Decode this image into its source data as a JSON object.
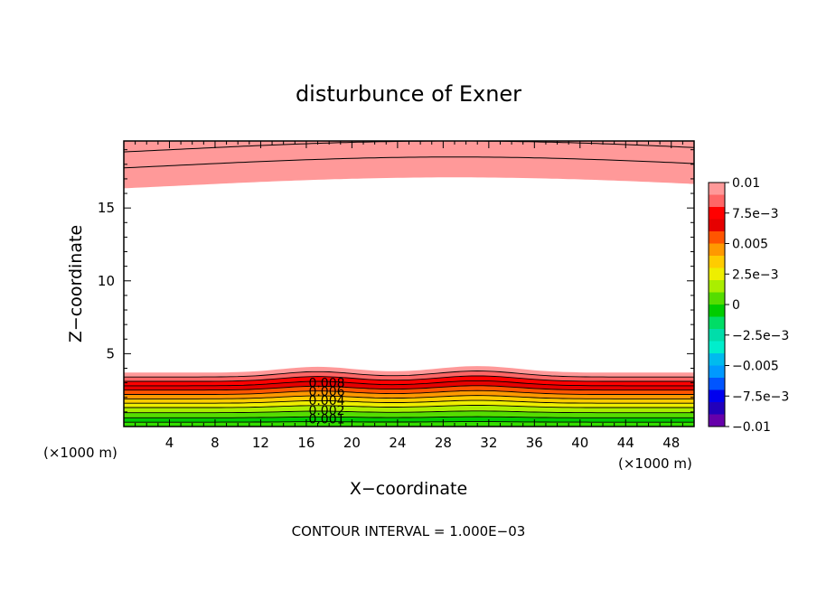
{
  "chart_data": {
    "type": "contour",
    "title": "disturbunce of Exner",
    "xlabel": "X−coordinate",
    "ylabel": "Z−coordinate",
    "x_unit_left": "(×1000 m)",
    "x_unit_right": "(×1000 m)",
    "footer": "CONTOUR INTERVAL = 1.000E−03",
    "xlim": [
      0,
      50
    ],
    "ylim": [
      0,
      19.6
    ],
    "x_ticks": [
      "4",
      "8",
      "12",
      "16",
      "20",
      "24",
      "28",
      "32",
      "36",
      "40",
      "44",
      "48"
    ],
    "y_ticks": [
      "5",
      "10",
      "15"
    ],
    "contour_labels": [
      "0.008",
      "0.006",
      "0.004",
      "0.002",
      "0.001"
    ],
    "colorbar": {
      "labels": [
        "0.01",
        "7.5e−3",
        "0.005",
        "2.5e−3",
        "0",
        "−2.5e−3",
        "−0.005",
        "−7.5e−3",
        "−0.01"
      ],
      "colors": [
        "#ff9999",
        "#ff6666",
        "#ff0000",
        "#e60000",
        "#ff5500",
        "#ff9900",
        "#ffcc00",
        "#eeee00",
        "#aaee00",
        "#55dd00",
        "#00cc00",
        "#00dd66",
        "#00ddaa",
        "#00eecc",
        "#00bbee",
        "#0099ff",
        "#0055ff",
        "#0000ee",
        "#2200bb",
        "#6600aa"
      ]
    },
    "lower_bands": [
      {
        "top": 3.7,
        "color": "#ff9999"
      },
      {
        "top": 3.4,
        "color": "#ff6666"
      },
      {
        "top": 3.1,
        "color": "#ff0000"
      },
      {
        "top": 2.8,
        "color": "#e60000"
      },
      {
        "top": 2.5,
        "color": "#ff5500"
      },
      {
        "top": 2.2,
        "color": "#ff9900"
      },
      {
        "top": 1.9,
        "color": "#ffcc00"
      },
      {
        "top": 1.6,
        "color": "#eeee00"
      },
      {
        "top": 1.3,
        "color": "#aaee00"
      },
      {
        "top": 0.95,
        "color": "#55dd00"
      },
      {
        "top": 0.6,
        "color": "#00cc00"
      },
      {
        "top": 0.3,
        "color": "#33dd00"
      }
    ],
    "upper_bands": [
      {
        "bottom": 19.0,
        "color": "#ff6666"
      },
      {
        "bottom": 17.9,
        "color": "#ff7777"
      },
      {
        "bottom": 16.5,
        "color": "#ff9999"
      }
    ]
  }
}
